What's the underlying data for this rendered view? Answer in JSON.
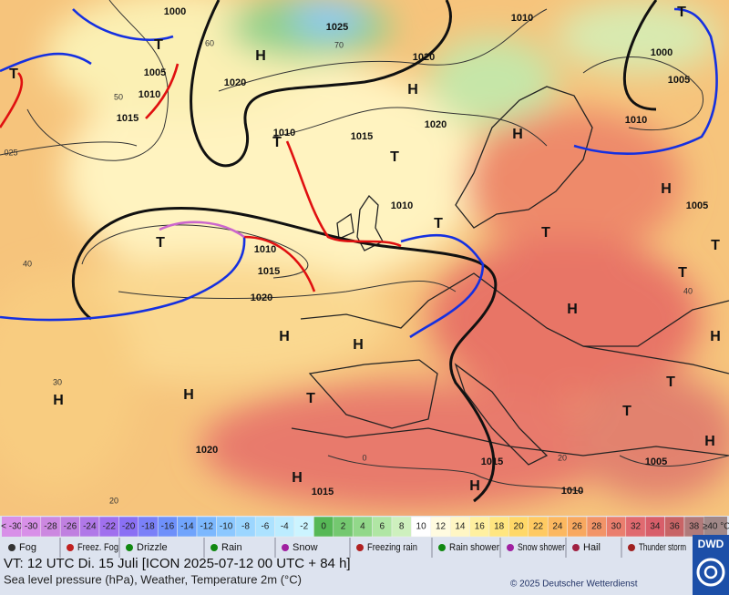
{
  "map": {
    "isobar_labels": [
      "1000",
      "1025",
      "1010",
      "1020",
      "1005",
      "1010",
      "1015",
      "1020",
      "1010",
      "1015",
      "1020",
      "1000",
      "1005",
      "1010",
      "1010",
      "1005",
      "1010",
      "1015",
      "1020",
      "1020",
      "1015",
      "1015",
      "1005",
      "1010"
    ],
    "temperature_labels": [
      "60",
      "50",
      "70",
      "40",
      "30",
      "20",
      "0",
      "20",
      "40",
      "025"
    ],
    "highs": [
      "H",
      "H",
      "H",
      "H",
      "H",
      "H",
      "H",
      "H",
      "H",
      "H",
      "H",
      "H",
      "H"
    ],
    "lows": [
      "T",
      "T",
      "T",
      "T",
      "T",
      "T",
      "T",
      "T",
      "T",
      "T",
      "T",
      "T",
      "T"
    ]
  },
  "scale": {
    "low_label": "< -30",
    "values": [
      -30,
      -28,
      -26,
      -24,
      -22,
      -20,
      -18,
      -16,
      -14,
      -12,
      -10,
      -8,
      -6,
      -4,
      -2,
      0,
      2,
      4,
      6,
      8,
      10,
      12,
      14,
      16,
      18,
      20,
      22,
      24,
      26,
      28,
      30,
      32,
      34,
      36,
      38
    ],
    "colors": [
      "#d890e8",
      "#cc88e0",
      "#c080e0",
      "#b078e8",
      "#a070ee",
      "#8a70f4",
      "#7a80f8",
      "#6e90fa",
      "#70a4fc",
      "#7cb8fe",
      "#8cc8ff",
      "#9cd6ff",
      "#ace2ff",
      "#bcecff",
      "#ccf4ff",
      "#56b856",
      "#74c870",
      "#92d88a",
      "#b0e6a4",
      "#cef0be",
      "#ffffff",
      "#fffbe0",
      "#fff6c4",
      "#fff0a0",
      "#ffe680",
      "#ffd868",
      "#ffca62",
      "#fcb860",
      "#f8a860",
      "#f29468",
      "#ea7e6e",
      "#e06a70",
      "#d85e6a",
      "#c86466",
      "#b07a7a"
    ],
    "high_label": "≥40 °C"
  },
  "legend": [
    "Fog",
    "Freez. Fog",
    "Drizzle",
    "Rain",
    "Snow",
    "Freezing rain",
    "Rain shower",
    "Snow shower",
    "Hail",
    "Thunder storm"
  ],
  "caption": {
    "valid_time": "VT: 12 UTC Di.  15 Juli [ICON 2025-07-12  00 UTC + 84 h]",
    "description": "Sea level pressure (hPa), Weather, Temperature 2m (°C)",
    "copyright": "© 2025 Deutscher Wetterdienst",
    "logo": "DWD"
  }
}
